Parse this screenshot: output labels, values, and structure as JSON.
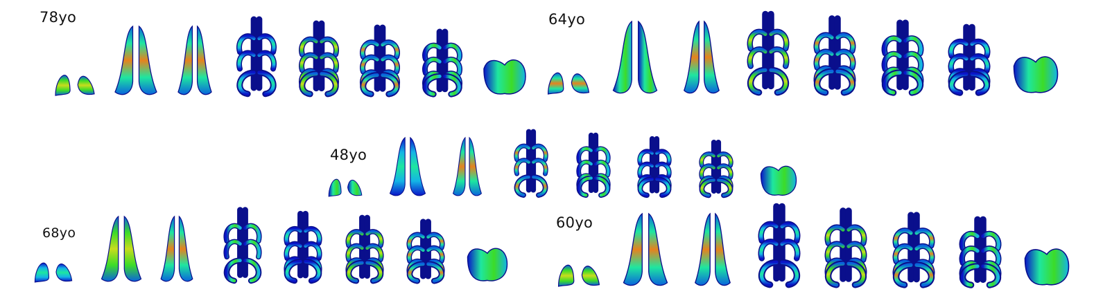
{
  "figure": {
    "labels": [
      "78yo",
      "64yo",
      "48yo",
      "68yo",
      "60yo"
    ],
    "colormap": [
      "#0a14c8",
      "#0a64dc",
      "#14b4e6",
      "#1ee6a0",
      "#3cdc28",
      "#c8dc1e",
      "#e6821e",
      "#d21e14"
    ],
    "outline_color": "#0a0f8c",
    "slices_per_subject": 8
  }
}
